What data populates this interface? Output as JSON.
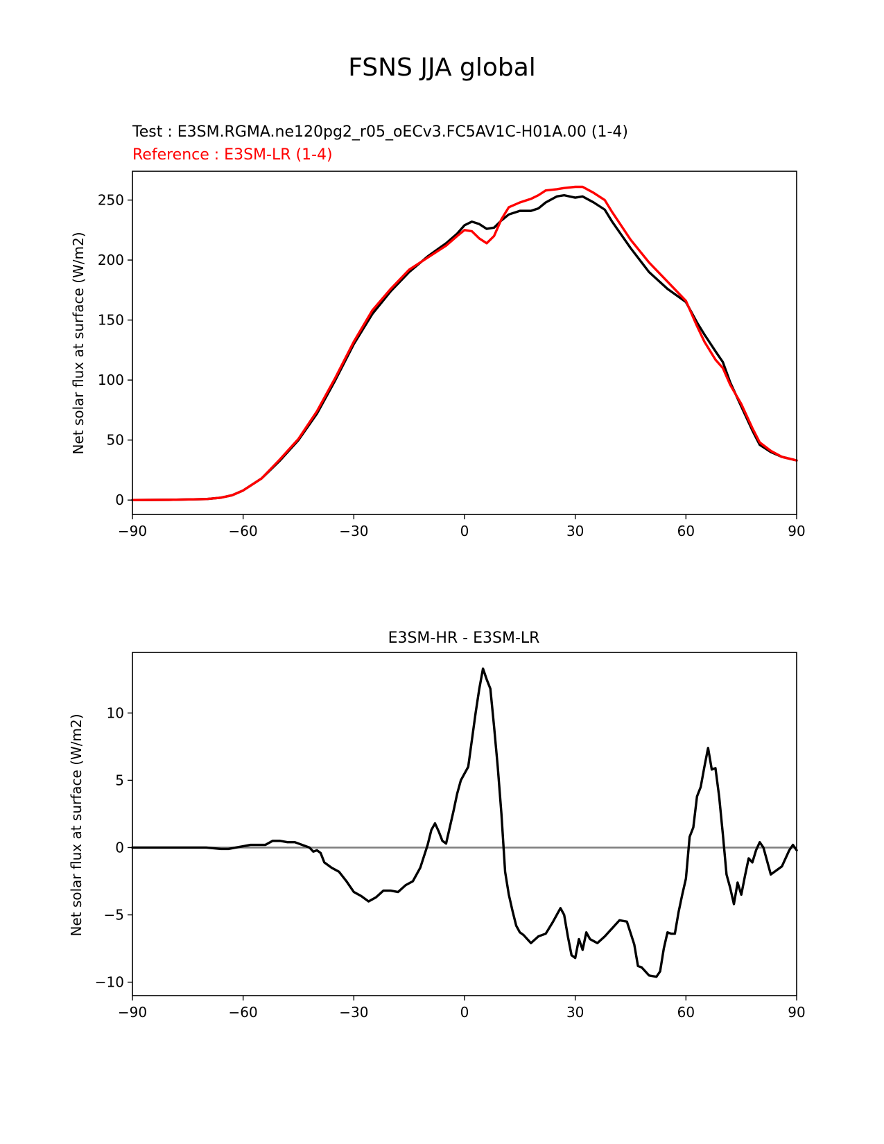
{
  "figure": {
    "suptitle": "FSNS JJA global"
  },
  "chart_data": [
    {
      "type": "line",
      "panel": "top",
      "test_title": "Test : E3SM.RGMA.ne120pg2_r05_oECv3.FC5AV1C-H01A.00 (1-4)",
      "reference_title": "Reference : E3SM-LR (1-4)",
      "xlabel": "",
      "ylabel": "Net solar flux at surface (W/m2)",
      "xlim": [
        -90,
        90
      ],
      "ylim": [
        -12,
        274
      ],
      "xticks": [
        -90,
        -60,
        -30,
        0,
        30,
        60,
        90
      ],
      "xtick_labels": [
        "−90",
        "−60",
        "−30",
        "0",
        "30",
        "60",
        "90"
      ],
      "yticks": [
        0,
        50,
        100,
        150,
        200,
        250
      ],
      "ytick_labels": [
        "0",
        "50",
        "100",
        "150",
        "200",
        "250"
      ],
      "grid": false,
      "series": [
        {
          "name": "Test",
          "color": "#000000",
          "x": [
            -90,
            -80,
            -70,
            -66,
            -63,
            -60,
            -55,
            -50,
            -45,
            -40,
            -35,
            -30,
            -25,
            -20,
            -15,
            -10,
            -5,
            -2,
            0,
            2,
            4,
            6,
            8,
            10,
            12,
            15,
            18,
            20,
            22,
            25,
            27,
            30,
            32,
            35,
            38,
            40,
            45,
            50,
            55,
            60,
            63,
            65,
            68,
            70,
            72,
            75,
            78,
            80,
            83,
            86,
            90
          ],
          "y": [
            0,
            0.2,
            0.8,
            2,
            4,
            8,
            18,
            33,
            50,
            72,
            100,
            130,
            155,
            174,
            190,
            203,
            214,
            222,
            229,
            232,
            230,
            226,
            227,
            233,
            238,
            241,
            241,
            243,
            248,
            253,
            254,
            252,
            253,
            248,
            242,
            232,
            210,
            190,
            176,
            165,
            148,
            138,
            124,
            115,
            98,
            78,
            58,
            46,
            40,
            36,
            33
          ]
        },
        {
          "name": "Reference",
          "color": "#ff0000",
          "x": [
            -90,
            -80,
            -70,
            -66,
            -63,
            -60,
            -55,
            -50,
            -45,
            -40,
            -35,
            -30,
            -25,
            -20,
            -15,
            -10,
            -5,
            -2,
            0,
            2,
            4,
            6,
            8,
            10,
            12,
            15,
            18,
            20,
            22,
            25,
            27,
            30,
            32,
            35,
            38,
            40,
            45,
            50,
            55,
            60,
            63,
            65,
            68,
            70,
            72,
            75,
            78,
            80,
            83,
            86,
            90
          ],
          "y": [
            0,
            0.2,
            0.8,
            2,
            4,
            8,
            18,
            34,
            51,
            74,
            102,
            132,
            158,
            176,
            192,
            202,
            212,
            220,
            225,
            224,
            218,
            214,
            220,
            234,
            244,
            248,
            251,
            254,
            258,
            259,
            260,
            261,
            261,
            256,
            250,
            240,
            217,
            198,
            182,
            166,
            145,
            132,
            117,
            110,
            96,
            80,
            60,
            48,
            41,
            36,
            33
          ]
        }
      ]
    },
    {
      "type": "line",
      "panel": "bottom",
      "title": "E3SM-HR - E3SM-LR",
      "xlabel": "",
      "ylabel": "Net solar flux at surface (W/m2)",
      "xlim": [
        -90,
        90
      ],
      "ylim": [
        -11,
        14.5
      ],
      "xticks": [
        -90,
        -60,
        -30,
        0,
        30,
        60,
        90
      ],
      "xtick_labels": [
        "−90",
        "−60",
        "−30",
        "0",
        "30",
        "60",
        "90"
      ],
      "yticks": [
        -10,
        -5,
        0,
        5,
        10
      ],
      "ytick_labels": [
        "−10",
        "−5",
        "0",
        "5",
        "10"
      ],
      "grid": false,
      "zero_line_color": "#808080",
      "series": [
        {
          "name": "Difference",
          "color": "#000000",
          "x": [
            -90,
            -80,
            -70,
            -66,
            -64,
            -62,
            -60,
            -58,
            -56,
            -54,
            -52,
            -50,
            -48,
            -46,
            -44,
            -42,
            -41,
            -40,
            -39,
            -38,
            -36,
            -34,
            -32,
            -30,
            -28,
            -26,
            -24,
            -22,
            -20,
            -18,
            -16,
            -14,
            -12,
            -10,
            -9,
            -8,
            -7,
            -6,
            -5,
            -4,
            -3,
            -2,
            -1,
            0,
            1,
            2,
            3,
            4,
            5,
            6,
            7,
            8,
            9,
            10,
            11,
            12,
            13,
            14,
            15,
            16,
            18,
            20,
            22,
            24,
            26,
            27,
            28,
            29,
            30,
            31,
            32,
            33,
            34,
            36,
            38,
            40,
            42,
            44,
            46,
            47,
            48,
            50,
            52,
            53,
            54,
            55,
            56,
            57,
            58,
            59,
            60,
            61,
            62,
            63,
            64,
            65,
            66,
            67,
            68,
            69,
            70,
            71,
            72,
            73,
            74,
            75,
            76,
            77,
            78,
            79,
            80,
            81,
            82,
            83,
            84,
            86,
            88,
            89,
            90
          ],
          "y": [
            0,
            0,
            0,
            -0.1,
            -0.1,
            0,
            0.1,
            0.2,
            0.2,
            0.2,
            0.5,
            0.5,
            0.4,
            0.4,
            0.2,
            0,
            -0.3,
            -0.2,
            -0.4,
            -1.1,
            -1.5,
            -1.8,
            -2.5,
            -3.3,
            -3.6,
            -4.0,
            -3.7,
            -3.2,
            -3.2,
            -3.3,
            -2.8,
            -2.5,
            -1.5,
            0.2,
            1.3,
            1.8,
            1.2,
            0.5,
            0.3,
            1.5,
            2.7,
            4.0,
            5.0,
            5.5,
            6.0,
            8.0,
            10.0,
            11.8,
            13.3,
            12.5,
            11.8,
            9.0,
            6.0,
            2.5,
            -1.8,
            -3.5,
            -4.7,
            -5.8,
            -6.3,
            -6.5,
            -7.1,
            -6.6,
            -6.4,
            -5.5,
            -4.5,
            -5.0,
            -6.6,
            -8.0,
            -8.2,
            -6.8,
            -7.6,
            -6.3,
            -6.8,
            -7.1,
            -6.6,
            -6.0,
            -5.4,
            -5.5,
            -7.2,
            -8.8,
            -8.9,
            -9.5,
            -9.6,
            -9.2,
            -7.5,
            -6.3,
            -6.4,
            -6.4,
            -4.8,
            -3.5,
            -2.3,
            0.8,
            1.5,
            3.8,
            4.5,
            6.0,
            7.4,
            5.8,
            5.9,
            3.8,
            1.0,
            -2.0,
            -3.0,
            -4.2,
            -2.6,
            -3.5,
            -2.1,
            -0.8,
            -1.1,
            -0.2,
            0.4,
            0,
            -1.0,
            -2.0,
            -1.8,
            -1.4,
            -0.2,
            0.2,
            -0.2
          ]
        }
      ]
    }
  ]
}
